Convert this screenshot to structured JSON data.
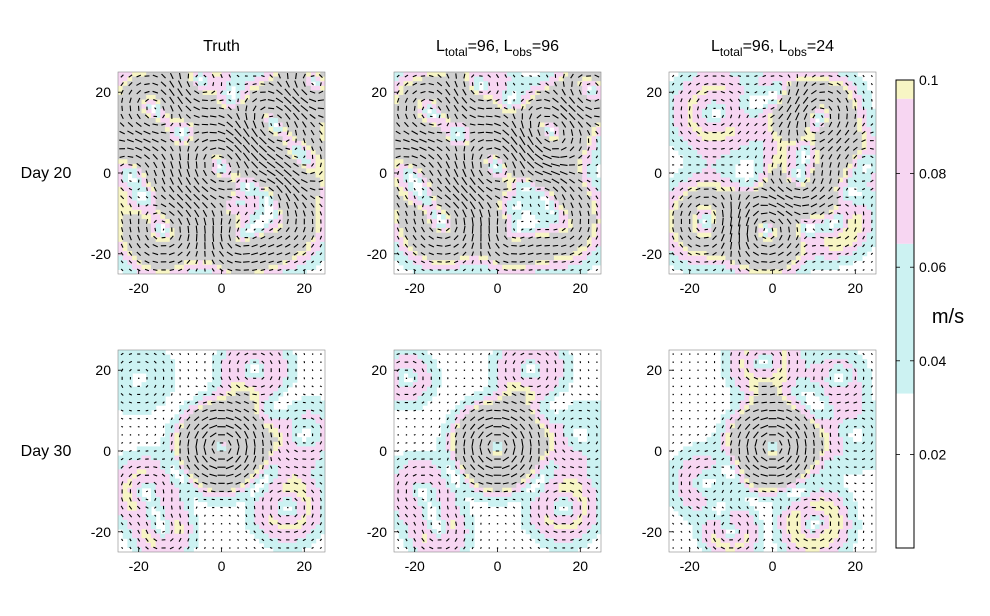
{
  "chart_data": {
    "type": "heatmap",
    "subtype": "quiver-on-speed-field",
    "column_titles": [
      {
        "main": "Truth"
      },
      {
        "parts": [
          {
            "t": "L",
            "sub": false
          },
          {
            "t": "total",
            "sub": true
          },
          {
            "t": "=96, L",
            "sub": false
          },
          {
            "t": "obs",
            "sub": true
          },
          {
            "t": "=96",
            "sub": false
          }
        ]
      },
      {
        "parts": [
          {
            "t": "L",
            "sub": false
          },
          {
            "t": "total",
            "sub": true
          },
          {
            "t": "=96, L",
            "sub": false
          },
          {
            "t": "obs",
            "sub": true
          },
          {
            "t": "=24",
            "sub": false
          }
        ]
      }
    ],
    "row_labels": [
      "Day 20",
      "Day 30"
    ],
    "x_range": [
      -25,
      25
    ],
    "y_range": [
      -25,
      25
    ],
    "x_ticks": [
      -20,
      0,
      20
    ],
    "y_ticks": [
      -20,
      0,
      20
    ],
    "x_tick_labels": [
      "-20",
      "0",
      "20"
    ],
    "y_tick_labels": [
      "-20",
      "0",
      "20"
    ],
    "grid": false,
    "colorbar": {
      "label": "m/s",
      "range": [
        0,
        0.1
      ],
      "ticks": [
        0.02,
        0.04,
        0.06,
        0.08,
        0.1
      ],
      "tick_labels": [
        "0.02",
        "0.04",
        "0.06",
        "0.08",
        "0.1"
      ],
      "bands": [
        {
          "from": 0.0,
          "to": 0.033,
          "color": "#ffffff"
        },
        {
          "from": 0.033,
          "to": 0.065,
          "color": "#ccf2f2"
        },
        {
          "from": 0.065,
          "to": 0.096,
          "color": "#f7d6f2"
        },
        {
          "from": 0.096,
          "to": 0.1,
          "color": "#f7f5c4"
        }
      ]
    },
    "vortex_color": "#cfcfcf",
    "panels": [
      {
        "row": 0,
        "col": 0,
        "eddies": [
          {
            "x": 0,
            "y": 2,
            "r": 7,
            "s": 1.0
          },
          {
            "x": 12,
            "y": 12,
            "r": 6,
            "s": -0.9
          },
          {
            "x": -14,
            "y": -14,
            "r": 6,
            "s": -0.8
          },
          {
            "x": 4,
            "y": -16,
            "r": 5,
            "s": 0.8
          },
          {
            "x": -16,
            "y": 16,
            "r": 6,
            "s": 0.75
          },
          {
            "x": 14,
            "y": -12,
            "r": 6,
            "s": 0.7
          },
          {
            "x": -6,
            "y": 22,
            "r": 5,
            "s": -0.6
          },
          {
            "x": 22,
            "y": 22,
            "r": 5,
            "s": 0.8
          },
          {
            "x": -22,
            "y": 0,
            "r": 6,
            "s": -0.6
          },
          {
            "x": 20,
            "y": 2,
            "r": 5,
            "s": -0.5
          },
          {
            "x": 12,
            "y": -4,
            "r": 4,
            "s": 0.7
          }
        ]
      },
      {
        "row": 0,
        "col": 1,
        "eddies": [
          {
            "x": 0,
            "y": 2,
            "r": 7,
            "s": 0.95
          },
          {
            "x": 12,
            "y": 10,
            "r": 6,
            "s": -0.9
          },
          {
            "x": -13,
            "y": -12,
            "r": 6,
            "s": -0.8
          },
          {
            "x": 3,
            "y": -15,
            "r": 5,
            "s": 0.7
          },
          {
            "x": -16,
            "y": 15,
            "r": 6,
            "s": 0.7
          },
          {
            "x": 15,
            "y": -12,
            "r": 6,
            "s": 0.65
          },
          {
            "x": -5,
            "y": 21,
            "r": 5,
            "s": -0.55
          },
          {
            "x": 22,
            "y": 20,
            "r": 5,
            "s": 0.7
          },
          {
            "x": -21,
            "y": 0,
            "r": 6,
            "s": -0.55
          },
          {
            "x": 12,
            "y": -4,
            "r": 4,
            "s": 0.6
          }
        ]
      },
      {
        "row": 0,
        "col": 2,
        "eddies": [
          {
            "x": -2,
            "y": -14,
            "r": 6,
            "s": 0.95
          },
          {
            "x": 10,
            "y": 14,
            "r": 6,
            "s": -0.85
          },
          {
            "x": -15,
            "y": -12,
            "r": 6,
            "s": -0.7
          },
          {
            "x": 3,
            "y": 18,
            "r": 5,
            "s": 0.6
          },
          {
            "x": -14,
            "y": 15,
            "r": 6,
            "s": 0.5
          },
          {
            "x": 15,
            "y": -12,
            "r": 5,
            "s": 0.55
          },
          {
            "x": 6,
            "y": -2,
            "r": 5,
            "s": -0.6
          },
          {
            "x": 22,
            "y": 2,
            "r": 5,
            "s": 0.4
          }
        ]
      },
      {
        "row": 1,
        "col": 0,
        "eddies": [
          {
            "x": 0,
            "y": 1,
            "r": 5.5,
            "s": 1.25
          },
          {
            "x": -18,
            "y": -10,
            "r": 5,
            "s": 0.5
          },
          {
            "x": 16,
            "y": -14,
            "r": 5,
            "s": 0.5
          },
          {
            "x": 8,
            "y": 20,
            "r": 5,
            "s": -0.45
          },
          {
            "x": -14,
            "y": -20,
            "r": 4,
            "s": 0.45
          },
          {
            "x": 20,
            "y": 4,
            "r": 5,
            "s": -0.35
          },
          {
            "x": -20,
            "y": 18,
            "r": 5,
            "s": 0.3
          }
        ]
      },
      {
        "row": 1,
        "col": 1,
        "eddies": [
          {
            "x": 0,
            "y": 1,
            "r": 5.5,
            "s": 1.2
          },
          {
            "x": -18,
            "y": -10,
            "r": 5,
            "s": 0.45
          },
          {
            "x": 16,
            "y": -14,
            "r": 5,
            "s": 0.5
          },
          {
            "x": 8,
            "y": 20,
            "r": 5,
            "s": -0.45
          },
          {
            "x": -14,
            "y": -20,
            "r": 4,
            "s": 0.45
          },
          {
            "x": 20,
            "y": 4,
            "r": 5,
            "s": -0.3
          },
          {
            "x": -22,
            "y": 18,
            "r": 4,
            "s": 0.4
          }
        ]
      },
      {
        "row": 1,
        "col": 2,
        "eddies": [
          {
            "x": 0,
            "y": 1,
            "r": 5.5,
            "s": 1.2
          },
          {
            "x": -16,
            "y": -8,
            "r": 5,
            "s": 0.4
          },
          {
            "x": 10,
            "y": -18,
            "r": 5,
            "s": 0.55
          },
          {
            "x": -2,
            "y": 22,
            "r": 5,
            "s": -0.5
          },
          {
            "x": -10,
            "y": -20,
            "r": 4,
            "s": 0.5
          },
          {
            "x": 20,
            "y": 4,
            "r": 5,
            "s": -0.3
          },
          {
            "x": 16,
            "y": 18,
            "r": 4,
            "s": 0.35
          }
        ]
      }
    ]
  }
}
